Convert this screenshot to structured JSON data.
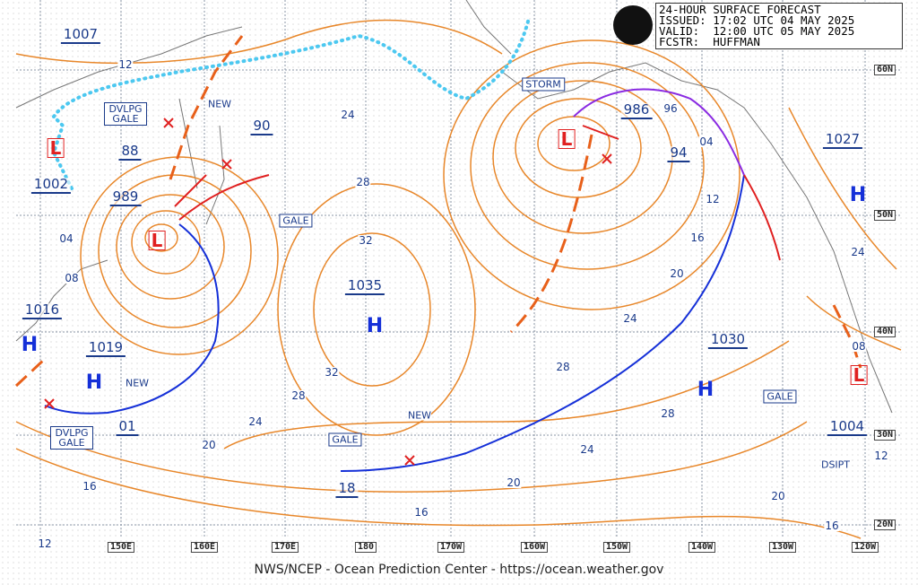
{
  "header": {
    "lines": [
      "24-HOUR SURFACE FORECAST",
      "ISSUED: 17:02 UTC 04 MAY 2025",
      "VALID:  12:00 UTC 05 MAY 2025",
      "FCSTR:  HUFFMAN"
    ]
  },
  "footer": "NWS/NCEP - Ocean Prediction Center - https://ocean.weather.gov",
  "longitude_labels": [
    "150E",
    "160E",
    "170E",
    "180",
    "170W",
    "160W",
    "150W",
    "140W",
    "130W",
    "120W"
  ],
  "latitude_labels": [
    "60N",
    "50N",
    "40N",
    "30N",
    "20N"
  ],
  "pressure_labels": [
    "1007",
    "1002",
    "1016",
    "1019",
    "01",
    "88",
    "989",
    "90",
    "1035",
    "18",
    "986",
    "94",
    "1027",
    "1030",
    "1004"
  ],
  "isobar_labels": [
    "12",
    "04",
    "08",
    "24",
    "28",
    "32",
    "32",
    "28",
    "24",
    "20",
    "16",
    "16",
    "20",
    "24",
    "28",
    "28",
    "24",
    "20",
    "16",
    "12",
    "96",
    "04",
    "24",
    "08",
    "12",
    "16",
    "20",
    "12"
  ],
  "warnings": [
    "DVLPG GALE",
    "GALE",
    "STORM",
    "GALE",
    "GALE",
    "DVLPG GALE"
  ],
  "notes": [
    "NEW",
    "NEW",
    "NEW",
    "DSIPT"
  ],
  "highs": [
    "H",
    "H",
    "H",
    "H",
    "H"
  ],
  "lows": [
    "L",
    "L",
    "L",
    "L"
  ]
}
